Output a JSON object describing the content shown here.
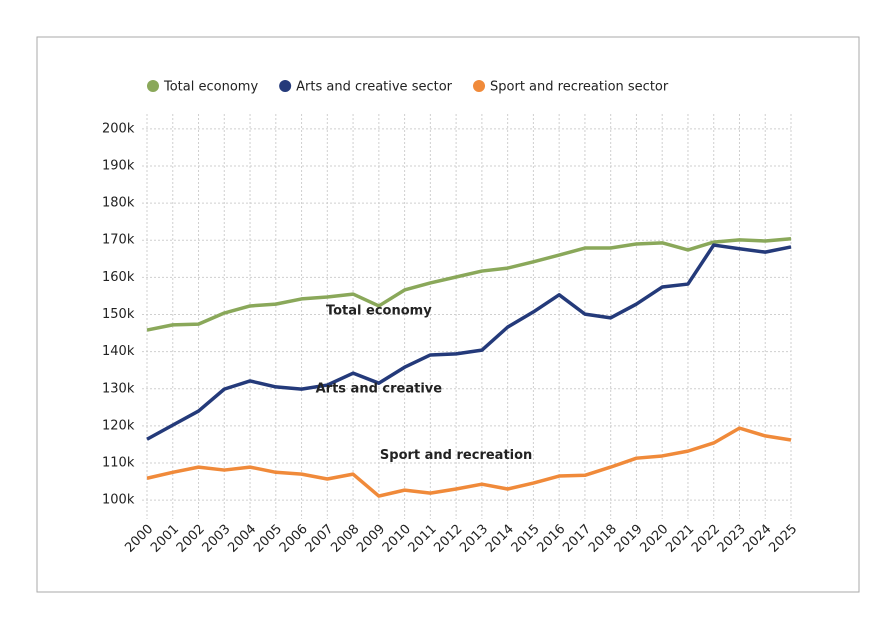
{
  "chart_data": {
    "type": "line",
    "x": [
      2000,
      2001,
      2002,
      2003,
      2004,
      2005,
      2006,
      2007,
      2008,
      2009,
      2010,
      2011,
      2012,
      2013,
      2014,
      2015,
      2016,
      2017,
      2018,
      2019,
      2020,
      2021,
      2022,
      2023,
      2024,
      2025
    ],
    "xlim": [
      2000,
      2025
    ],
    "xticks": [
      2000,
      2001,
      2002,
      2003,
      2004,
      2005,
      2006,
      2007,
      2008,
      2009,
      2010,
      2011,
      2012,
      2013,
      2014,
      2015,
      2016,
      2017,
      2018,
      2019,
      2020,
      2021,
      2022,
      2023,
      2024,
      2025
    ],
    "ylim": [
      96000,
      204000
    ],
    "yticks": [
      {
        "value": 100000,
        "label": "100k"
      },
      {
        "value": 110000,
        "label": "110k"
      },
      {
        "value": 120000,
        "label": "120k"
      },
      {
        "value": 130000,
        "label": "130k"
      },
      {
        "value": 140000,
        "label": "140k"
      },
      {
        "value": 150000,
        "label": "150k"
      },
      {
        "value": 160000,
        "label": "160k"
      },
      {
        "value": 170000,
        "label": "170k"
      },
      {
        "value": 180000,
        "label": "180k"
      },
      {
        "value": 190000,
        "label": "190k"
      },
      {
        "value": 200000,
        "label": "200k"
      }
    ],
    "grid": true,
    "legend": "top",
    "series": [
      {
        "name": "Total economy",
        "color": "#8aa85a",
        "values": [
          145800,
          147200,
          147400,
          150400,
          152300,
          152800,
          154200,
          154700,
          155500,
          152300,
          156600,
          158500,
          160100,
          161700,
          162500,
          164200,
          166000,
          167900,
          167900,
          169000,
          169300,
          167400,
          169500,
          170100,
          169800,
          170400
        ]
      },
      {
        "name": "Arts and creative sector",
        "color": "#243a7a",
        "values": [
          116400,
          120200,
          124000,
          129900,
          132100,
          130500,
          129900,
          131000,
          134200,
          131500,
          135800,
          139100,
          139400,
          140400,
          146600,
          150700,
          155300,
          150100,
          149100,
          152800,
          157400,
          158200,
          168700,
          167700,
          166800,
          168200
        ]
      },
      {
        "name": "Sport and recreation sector",
        "color": "#f08a3a",
        "values": [
          105900,
          107500,
          108900,
          108100,
          108900,
          107500,
          107000,
          105700,
          107000,
          101100,
          102700,
          101900,
          103000,
          104300,
          103000,
          104600,
          106500,
          106700,
          108900,
          111300,
          111900,
          113200,
          115400,
          119400,
          117300,
          116200
        ]
      }
    ],
    "annotations": [
      {
        "text": "Total economy",
        "x": 2009,
        "y": 151000
      },
      {
        "text": "Arts and creative",
        "x": 2009,
        "y": 130000
      },
      {
        "text": "Sport and recreation",
        "x": 2012,
        "y": 112000
      }
    ]
  }
}
